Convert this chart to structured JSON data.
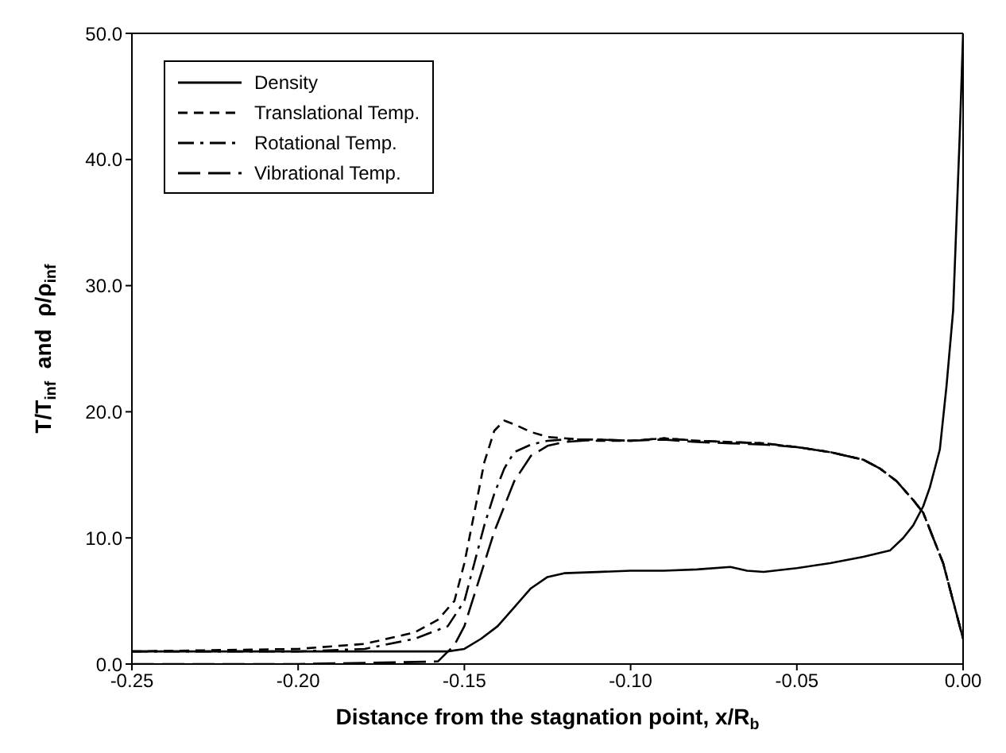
{
  "chart_data": {
    "type": "line",
    "xlabel": "Distance from the stagnation point, x/R$_{b}$",
    "ylabel": "T/T$_{inf}$  and  ρ/ρ$_{inf}$",
    "xlim": [
      -0.25,
      0
    ],
    "ylim": [
      0,
      50
    ],
    "xticks": [
      {
        "value": -0.25,
        "label": "-0.25"
      },
      {
        "value": -0.2,
        "label": "-0.20"
      },
      {
        "value": -0.15,
        "label": "-0.15"
      },
      {
        "value": -0.1,
        "label": "-0.10"
      },
      {
        "value": -0.05,
        "label": "-0.05"
      },
      {
        "value": 0,
        "label": "0.00"
      }
    ],
    "yticks": [
      {
        "value": 0,
        "label": "0.0"
      },
      {
        "value": 10,
        "label": "10.0"
      },
      {
        "value": 20,
        "label": "20.0"
      },
      {
        "value": 30,
        "label": "30.0"
      },
      {
        "value": 40,
        "label": "40.0"
      },
      {
        "value": 50,
        "label": "50.0"
      }
    ],
    "grid": false,
    "legend": "top left",
    "marker": "none",
    "series": [
      {
        "name": "Density",
        "color": "#000000",
        "line_style": "solid",
        "x": [
          -0.25,
          -0.2,
          -0.16,
          -0.155,
          -0.15,
          -0.145,
          -0.14,
          -0.135,
          -0.13,
          -0.125,
          -0.12,
          -0.11,
          -0.1,
          -0.09,
          -0.08,
          -0.07,
          -0.065,
          -0.06,
          -0.05,
          -0.04,
          -0.03,
          -0.022,
          -0.018,
          -0.015,
          -0.012,
          -0.01,
          -0.007,
          -0.005,
          -0.003,
          -0.002,
          -0.001,
          0
        ],
        "values": [
          1,
          1,
          1,
          1,
          1.2,
          2,
          3,
          4.5,
          6,
          6.9,
          7.2,
          7.3,
          7.4,
          7.4,
          7.5,
          7.7,
          7.4,
          7.3,
          7.6,
          8,
          8.5,
          9,
          10,
          11,
          12.5,
          14,
          17,
          22,
          28,
          35,
          42,
          50
        ]
      },
      {
        "name": "Translational Temp.",
        "color": "#000000",
        "line_style": "dashed",
        "x": [
          -0.25,
          -0.2,
          -0.18,
          -0.165,
          -0.158,
          -0.153,
          -0.15,
          -0.147,
          -0.144,
          -0.141,
          -0.138,
          -0.135,
          -0.13,
          -0.125,
          -0.12,
          -0.11,
          -0.1,
          -0.09,
          -0.08,
          -0.07,
          -0.06,
          -0.05,
          -0.04,
          -0.03,
          -0.025,
          -0.02,
          -0.015,
          -0.012,
          -0.009,
          -0.006,
          -0.003,
          0
        ],
        "values": [
          1,
          1.2,
          1.6,
          2.5,
          3.5,
          5,
          8,
          12,
          16,
          18.5,
          19.3,
          19,
          18.4,
          18,
          17.9,
          17.7,
          17.7,
          17.9,
          17.7,
          17.6,
          17.5,
          17.2,
          16.8,
          16.2,
          15.5,
          14.5,
          13,
          12,
          10,
          8,
          5,
          2
        ]
      },
      {
        "name": "Rotational Temp.",
        "color": "#000000",
        "line_style": "dashdot",
        "x": [
          -0.25,
          -0.2,
          -0.18,
          -0.165,
          -0.155,
          -0.15,
          -0.147,
          -0.144,
          -0.141,
          -0.138,
          -0.135,
          -0.13,
          -0.125,
          -0.12,
          -0.11,
          -0.1,
          -0.09,
          -0.08,
          -0.07,
          -0.06,
          -0.05,
          -0.04,
          -0.03,
          -0.025,
          -0.02,
          -0.015,
          -0.012,
          -0.009,
          -0.006,
          -0.003,
          0
        ],
        "values": [
          1,
          1,
          1.2,
          2,
          3,
          5,
          8,
          11,
          13.5,
          15.5,
          16.8,
          17.4,
          17.7,
          17.8,
          17.8,
          17.7,
          17.9,
          17.7,
          17.6,
          17.5,
          17.2,
          16.8,
          16.2,
          15.5,
          14.5,
          13,
          12,
          10,
          8,
          5,
          2
        ]
      },
      {
        "name": "Vibrational Temp.",
        "color": "#000000",
        "line_style": "longdash",
        "x": [
          -0.25,
          -0.2,
          -0.158,
          -0.153,
          -0.15,
          -0.147,
          -0.144,
          -0.141,
          -0.138,
          -0.135,
          -0.13,
          -0.125,
          -0.12,
          -0.11,
          -0.1,
          -0.09,
          -0.08,
          -0.07,
          -0.06,
          -0.05,
          -0.04,
          -0.03,
          -0.025,
          -0.02,
          -0.015,
          -0.012,
          -0.009,
          -0.006,
          -0.003,
          0
        ],
        "values": [
          0,
          0,
          0.2,
          1.5,
          3,
          5.5,
          8,
          10.5,
          12.5,
          14.5,
          16.5,
          17.3,
          17.6,
          17.8,
          17.7,
          17.8,
          17.6,
          17.5,
          17.4,
          17.2,
          16.8,
          16.2,
          15.5,
          14.5,
          13,
          12,
          10,
          8,
          5,
          2
        ]
      }
    ]
  }
}
